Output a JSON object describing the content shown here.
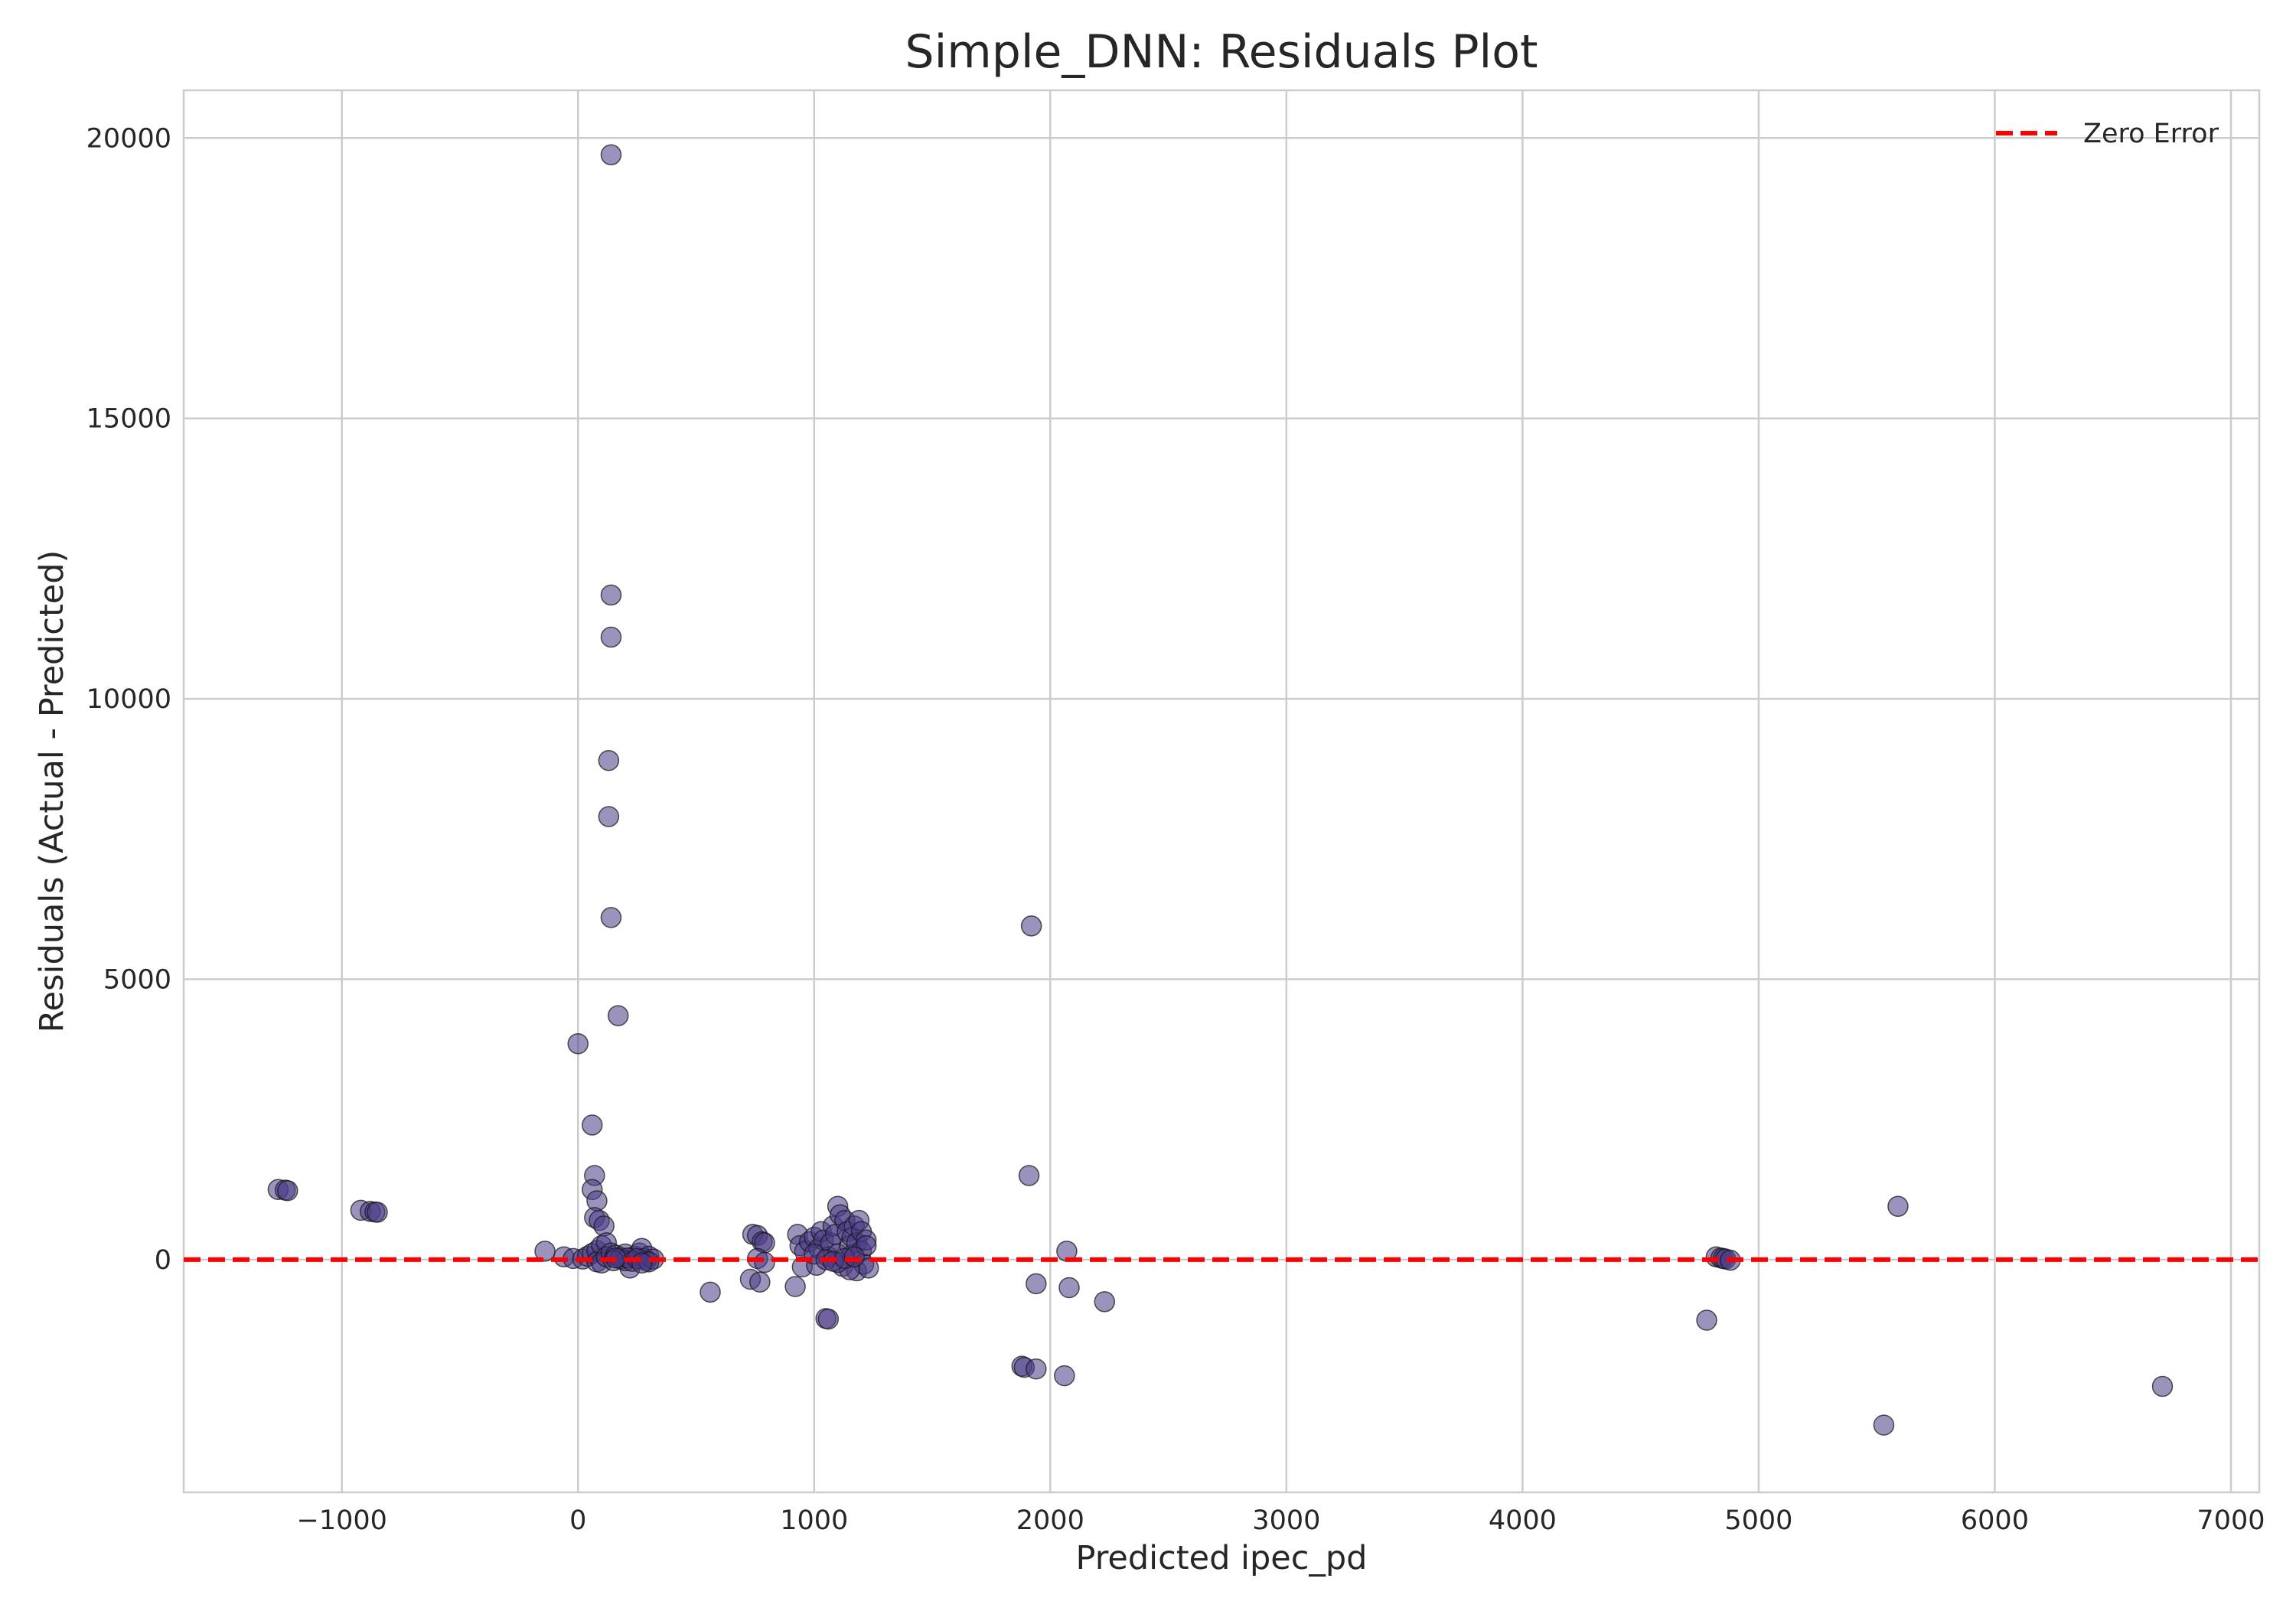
{
  "chart_data": {
    "type": "scatter",
    "title": "Simple_DNN: Residuals Plot",
    "xlabel": "Predicted ipec_pd",
    "ylabel": "Residuals (Actual - Predicted)",
    "xlim": [
      -1670,
      7120
    ],
    "ylim": [
      -4150,
      20850
    ],
    "x_ticks": [
      -1000,
      0,
      1000,
      2000,
      3000,
      4000,
      5000,
      6000,
      7000
    ],
    "x_tick_labels": [
      "−1000",
      "0",
      "1000",
      "2000",
      "3000",
      "4000",
      "5000",
      "6000",
      "7000"
    ],
    "y_ticks": [
      0,
      5000,
      10000,
      15000,
      20000
    ],
    "y_tick_labels": [
      "0",
      "5000",
      "10000",
      "15000",
      "20000"
    ],
    "grid": true,
    "legend": {
      "position": "top-right",
      "entries": [
        "Zero Error"
      ]
    },
    "reference_line": {
      "name": "Zero Error",
      "y": 0,
      "style": "dashed",
      "color": "#ff0000"
    },
    "marker_color": "#4b3a86",
    "series": [
      {
        "points": [
          [
            140,
            19700
          ],
          [
            140,
            11850
          ],
          [
            140,
            11100
          ],
          [
            130,
            8900
          ],
          [
            130,
            7900
          ],
          [
            140,
            6100
          ],
          [
            170,
            4350
          ],
          [
            0,
            3850
          ],
          [
            60,
            2400
          ],
          [
            70,
            1500
          ],
          [
            60,
            1250
          ],
          [
            80,
            1050
          ],
          [
            70,
            750
          ],
          [
            90,
            700
          ],
          [
            110,
            600
          ],
          [
            -140,
            150
          ],
          [
            -60,
            50
          ],
          [
            -20,
            20
          ],
          [
            20,
            10
          ],
          [
            40,
            60
          ],
          [
            60,
            110
          ],
          [
            80,
            160
          ],
          [
            100,
            250
          ],
          [
            120,
            300
          ],
          [
            80,
            -40
          ],
          [
            100,
            -60
          ],
          [
            120,
            50
          ],
          [
            140,
            120
          ],
          [
            160,
            80
          ],
          [
            180,
            40
          ],
          [
            200,
            100
          ],
          [
            220,
            -150
          ],
          [
            240,
            60
          ],
          [
            260,
            120
          ],
          [
            270,
            200
          ],
          [
            280,
            20
          ],
          [
            290,
            -20
          ],
          [
            300,
            60
          ],
          [
            320,
            10
          ],
          [
            180,
            10
          ],
          [
            200,
            -20
          ],
          [
            210,
            30
          ],
          [
            230,
            -30
          ],
          [
            250,
            20
          ],
          [
            150,
            -20
          ],
          [
            300,
            -40
          ],
          [
            270,
            -60
          ],
          [
            160,
            30
          ],
          [
            -1270,
            1250
          ],
          [
            -1240,
            1240
          ],
          [
            -1230,
            1230
          ],
          [
            -920,
            880
          ],
          [
            -880,
            860
          ],
          [
            -860,
            850
          ],
          [
            -850,
            845
          ],
          [
            560,
            -580
          ],
          [
            730,
            -350
          ],
          [
            770,
            -400
          ],
          [
            740,
            450
          ],
          [
            760,
            430
          ],
          [
            780,
            320
          ],
          [
            790,
            300
          ],
          [
            760,
            20
          ],
          [
            790,
            -50
          ],
          [
            920,
            -480
          ],
          [
            930,
            450
          ],
          [
            940,
            250
          ],
          [
            950,
            -130
          ],
          [
            960,
            150
          ],
          [
            980,
            320
          ],
          [
            1000,
            400
          ],
          [
            1010,
            -100
          ],
          [
            1020,
            200
          ],
          [
            1030,
            500
          ],
          [
            1040,
            350
          ],
          [
            1050,
            -1050
          ],
          [
            1060,
            -1060
          ],
          [
            1060,
            50
          ],
          [
            1070,
            300
          ],
          [
            1080,
            600
          ],
          [
            1090,
            450
          ],
          [
            1100,
            100
          ],
          [
            1100,
            950
          ],
          [
            1110,
            800
          ],
          [
            1120,
            -120
          ],
          [
            1130,
            700
          ],
          [
            1140,
            500
          ],
          [
            1150,
            250
          ],
          [
            1160,
            400
          ],
          [
            1160,
            80
          ],
          [
            1170,
            600
          ],
          [
            1180,
            300
          ],
          [
            1180,
            -200
          ],
          [
            1190,
            700
          ],
          [
            1200,
            500
          ],
          [
            1200,
            150
          ],
          [
            1210,
            -80
          ],
          [
            1220,
            350
          ],
          [
            1220,
            250
          ],
          [
            1230,
            -150
          ],
          [
            1150,
            -180
          ],
          [
            1100,
            -50
          ],
          [
            1000,
            100
          ],
          [
            1050,
            0
          ],
          [
            1080,
            -30
          ],
          [
            1130,
            20
          ],
          [
            1170,
            50
          ],
          [
            1880,
            -1900
          ],
          [
            1890,
            -1920
          ],
          [
            1940,
            -1950
          ],
          [
            1920,
            5950
          ],
          [
            1910,
            1500
          ],
          [
            1940,
            -430
          ],
          [
            2060,
            -2070
          ],
          [
            2070,
            150
          ],
          [
            2080,
            -500
          ],
          [
            2230,
            -750
          ],
          [
            4780,
            -1080
          ],
          [
            4820,
            50
          ],
          [
            4840,
            30
          ],
          [
            4850,
            20
          ],
          [
            4860,
            10
          ],
          [
            4880,
            -10
          ],
          [
            5530,
            -2950
          ],
          [
            5590,
            950
          ],
          [
            6710,
            -2260
          ]
        ]
      }
    ]
  }
}
